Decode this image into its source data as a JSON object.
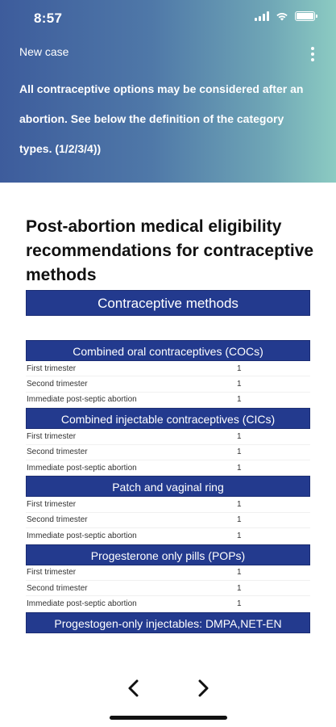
{
  "status_bar": {
    "time": "8:57"
  },
  "header": {
    "title": "New case",
    "notice": "All contraceptive options may be considered after an abortion. See below the definition of the category types. (1/2/3/4))"
  },
  "main": {
    "title": "Post-abortion medical eligibility recommendations for contraceptive methods",
    "methods_header": "Contraceptive methods",
    "groups": [
      {
        "name": "Combined oral contraceptives (COCs)",
        "rows": [
          {
            "label": "First trimester",
            "value": "1"
          },
          {
            "label": "Second trimester",
            "value": "1"
          },
          {
            "label": "Immediate post-septic abortion",
            "value": "1"
          }
        ]
      },
      {
        "name": "Combined injectable contraceptives (CICs)",
        "rows": [
          {
            "label": "First trimester",
            "value": "1"
          },
          {
            "label": "Second trimester",
            "value": "1"
          },
          {
            "label": "Immediate post-septic abortion",
            "value": "1"
          }
        ]
      },
      {
        "name": "Patch and vaginal ring",
        "rows": [
          {
            "label": "First trimester",
            "value": "1"
          },
          {
            "label": "Second trimester",
            "value": "1"
          },
          {
            "label": "Immediate post-septic abortion",
            "value": "1"
          }
        ]
      },
      {
        "name": "Progesterone only pills (POPs)",
        "rows": [
          {
            "label": "First trimester",
            "value": "1"
          },
          {
            "label": "Second trimester",
            "value": "1"
          },
          {
            "label": "Immediate post-septic abortion",
            "value": "1"
          }
        ]
      },
      {
        "name": "Progestogen-only injectables: DMPA,NET-EN",
        "rows": []
      }
    ]
  },
  "icons": {
    "prev": "chevron-left-icon",
    "next": "chevron-right-icon",
    "menu": "more-vertical-icon",
    "wifi": "wifi-icon",
    "signal": "signal-icon",
    "battery": "battery-icon"
  }
}
